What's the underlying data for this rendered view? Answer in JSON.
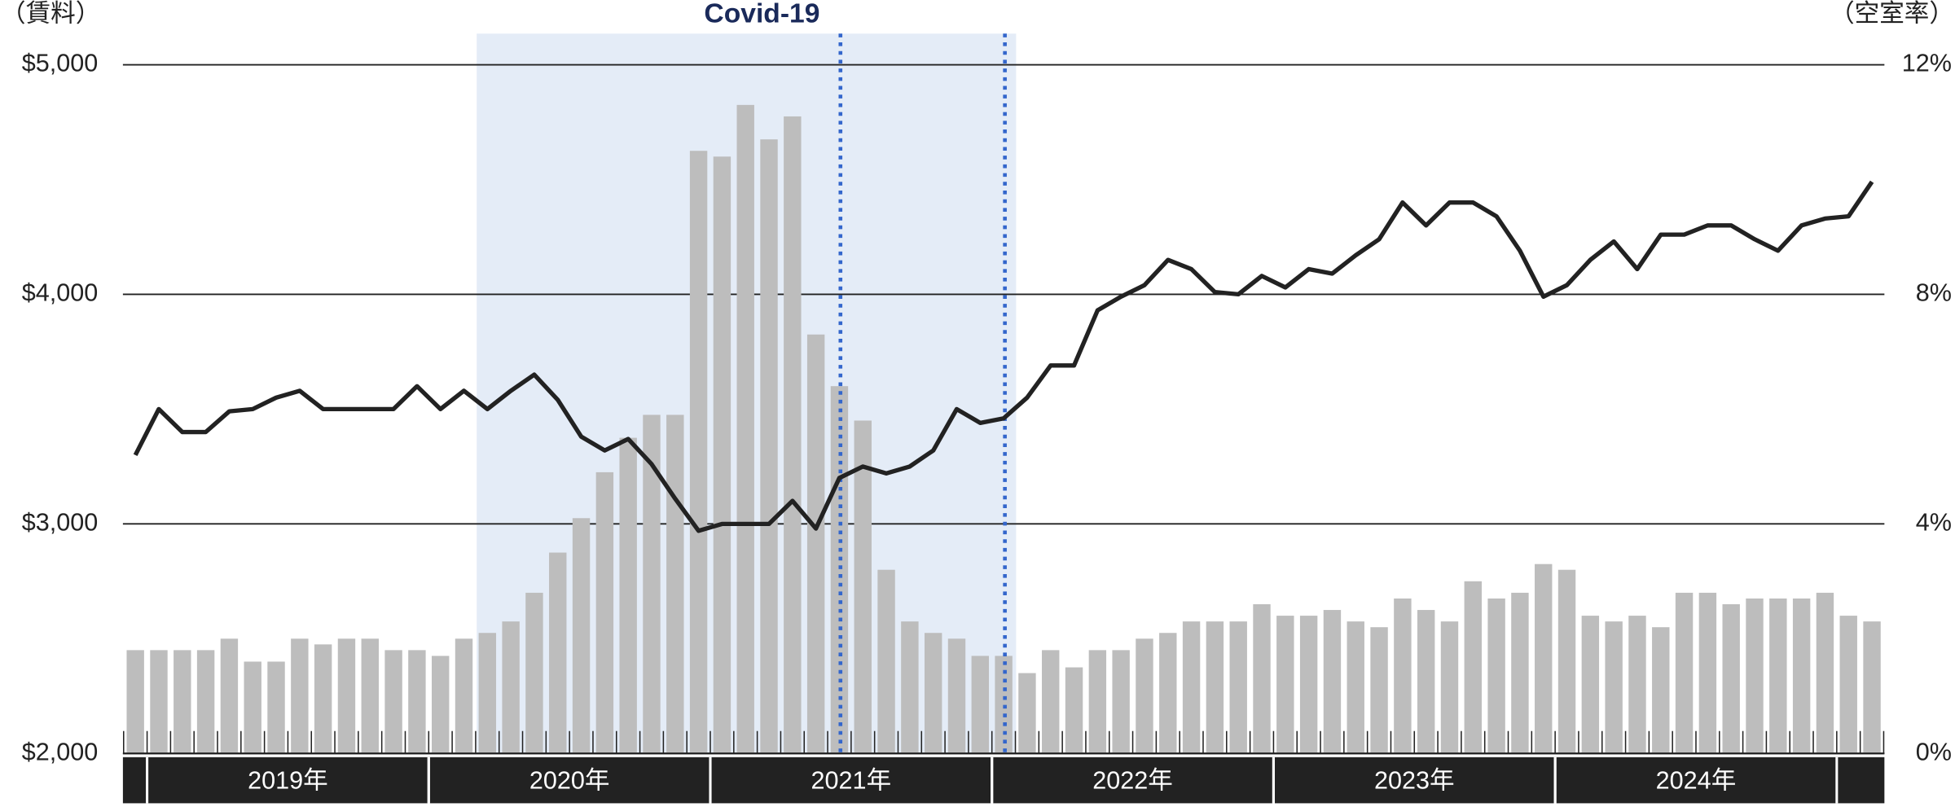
{
  "chart_data": {
    "type": "bar",
    "annotation": "Covid-19",
    "y_axis_label": "（賃料）",
    "y2_axis_label": "（空室率）",
    "categories": [
      null,
      null,
      null,
      null,
      null,
      null,
      null,
      null,
      null,
      null,
      null,
      null,
      null,
      null,
      null,
      null,
      null,
      null,
      null,
      null,
      null,
      null,
      null,
      null,
      null,
      null,
      null,
      null,
      null,
      null,
      null,
      null,
      null,
      null,
      null,
      null,
      null,
      null,
      null,
      null,
      null,
      null,
      null,
      null,
      null,
      null,
      null,
      null,
      null,
      null,
      null,
      null,
      null,
      null,
      null,
      null,
      null,
      null,
      null,
      null,
      null,
      null,
      null,
      null,
      null,
      null,
      null,
      null,
      null,
      null,
      null,
      null,
      null,
      null,
      null
    ],
    "year_labels": [
      "2019年",
      "2020年",
      "2021年",
      "2022年",
      "2023年",
      "2024年"
    ],
    "ylim": [
      2000,
      5000
    ],
    "yticks": [
      {
        "value": 2000,
        "label": "$2,000"
      },
      {
        "value": 3000,
        "label": "$3,000"
      },
      {
        "value": 4000,
        "label": "$4,000"
      },
      {
        "value": 5000,
        "label": "$5,000"
      }
    ],
    "y2lim": [
      0,
      12
    ],
    "y2ticks": [
      {
        "value": 0,
        "label": "0%"
      },
      {
        "value": 4,
        "label": "4%"
      },
      {
        "value": 8,
        "label": "8%"
      },
      {
        "value": 12,
        "label": "12%"
      }
    ],
    "grid": true,
    "series": [
      {
        "type": "bar",
        "axis": "y2",
        "color": "#bdbdbd",
        "values": [
          1.8,
          1.8,
          1.8,
          1.8,
          2.0,
          1.6,
          1.6,
          2.0,
          1.9,
          2.0,
          2.0,
          1.8,
          1.8,
          1.7,
          2.0,
          2.1,
          2.3,
          2.8,
          3.5,
          4.1,
          4.9,
          5.5,
          5.9,
          5.9,
          10.5,
          10.4,
          11.3,
          10.7,
          11.1,
          7.3,
          6.4,
          5.8,
          3.2,
          2.3,
          2.1,
          2.0,
          1.7,
          1.7,
          1.4,
          1.8,
          1.5,
          1.8,
          1.8,
          2.0,
          2.1,
          2.3,
          2.3,
          2.3,
          2.6,
          2.4,
          2.4,
          2.5,
          2.3,
          2.2,
          2.7,
          2.5,
          2.3,
          3.0,
          2.7,
          2.8,
          3.3,
          3.2,
          2.4,
          2.3,
          2.4,
          2.2,
          2.8,
          2.8,
          2.6,
          2.7,
          2.7,
          2.7,
          2.8,
          2.4,
          2.3
        ]
      },
      {
        "type": "line",
        "color": "#222222",
        "values": [
          3300,
          3500,
          3400,
          3400,
          3490,
          3500,
          3550,
          3580,
          3500,
          3500,
          3500,
          3500,
          3600,
          3500,
          3580,
          3500,
          3580,
          3650,
          3540,
          3380,
          3320,
          3370,
          3260,
          3110,
          2970,
          3000,
          3000,
          3000,
          3100,
          2980,
          3200,
          3250,
          3220,
          3250,
          3320,
          3500,
          3440,
          3460,
          3550,
          3690,
          3690,
          3930,
          3990,
          4040,
          4150,
          4110,
          4010,
          4000,
          4080,
          4030,
          4110,
          4090,
          4170,
          4240,
          4400,
          4300,
          4400,
          4400,
          4340,
          4190,
          3990,
          4040,
          4150,
          4230,
          4110,
          4260,
          4260,
          4300,
          4300,
          4240,
          4190,
          4300,
          4330,
          4340,
          4490
        ]
      }
    ]
  }
}
